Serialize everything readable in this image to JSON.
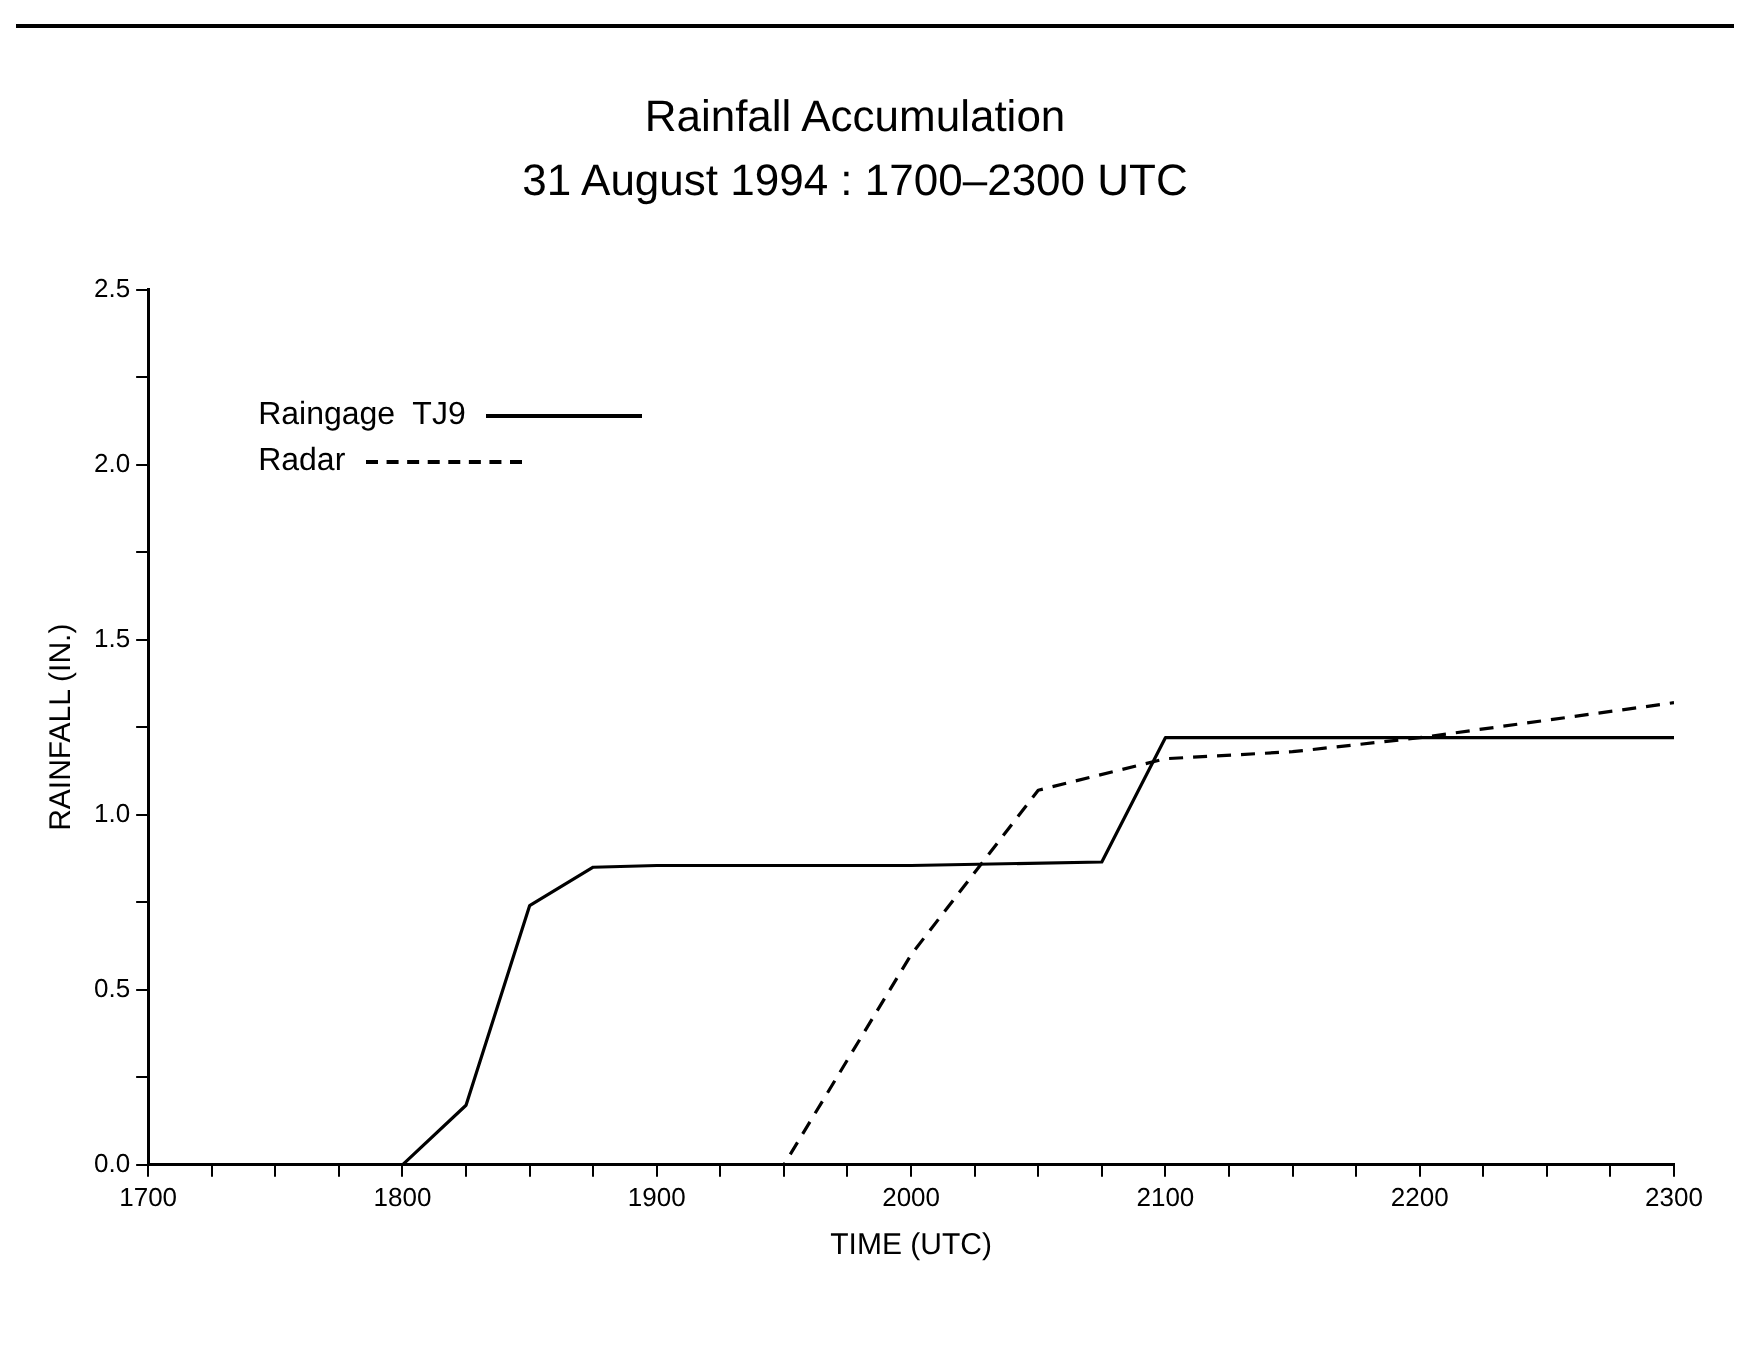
{
  "chart_data": {
    "type": "line",
    "title": "Rainfall Accumulation",
    "subtitle": "31 August 1994 : 1700–2300 UTC",
    "xlabel": "TIME (UTC)",
    "ylabel": "RAINFALL (IN.)",
    "x": [
      1700,
      1800,
      1825,
      1850,
      1875,
      1900,
      2000,
      2075,
      2100,
      2200,
      2300
    ],
    "series": [
      {
        "name": "Raingage  TJ9",
        "color": "#000000",
        "line_style": "solid",
        "values": [
          0,
          0,
          0.17,
          0.74,
          0.85,
          0.855,
          0.855,
          0.865,
          1.22,
          1.22,
          1.22
        ]
      },
      {
        "name": "Radar",
        "color": "#000000",
        "line_style": "dashed",
        "x": [
          1700,
          1950,
          2000,
          2050,
          2100,
          2150,
          2200,
          2300
        ],
        "values": [
          0,
          0,
          0.6,
          1.07,
          1.16,
          1.18,
          1.22,
          1.32
        ]
      }
    ],
    "xlim": [
      1700,
      2300
    ],
    "xticks": [
      1700,
      {
        "value": 1725,
        "label": null
      },
      {
        "value": 1750,
        "label": null
      },
      {
        "value": 1775,
        "label": null
      },
      1800,
      {
        "value": 1825,
        "label": null
      },
      {
        "value": 1850,
        "label": null
      },
      {
        "value": 1875,
        "label": null
      },
      1900,
      {
        "value": 1925,
        "label": null
      },
      {
        "value": 1950,
        "label": null
      },
      {
        "value": 1975,
        "label": null
      },
      2000,
      {
        "value": 2025,
        "label": null
      },
      {
        "value": 2050,
        "label": null
      },
      {
        "value": 2075,
        "label": null
      },
      2100,
      {
        "value": 2125,
        "label": null
      },
      {
        "value": 2150,
        "label": null
      },
      {
        "value": 2175,
        "label": null
      },
      2200,
      {
        "value": 2225,
        "label": null
      },
      {
        "value": 2250,
        "label": null
      },
      {
        "value": 2275,
        "label": null
      },
      2300
    ],
    "ylim": [
      0,
      2.5
    ],
    "yticks": [
      {
        "value": 0,
        "label": "0.0"
      },
      {
        "value": 0.25,
        "label": null
      },
      {
        "value": 0.5,
        "label": "0.5"
      },
      {
        "value": 0.75,
        "label": null
      },
      {
        "value": 1,
        "label": "1.0"
      },
      {
        "value": 1.25,
        "label": null
      },
      {
        "value": 1.5,
        "label": "1.5"
      },
      {
        "value": 1.75,
        "label": null
      },
      {
        "value": 2,
        "label": "2.0"
      },
      {
        "value": 2.25,
        "label": null
      },
      {
        "value": 2.5,
        "label": "2.5"
      }
    ],
    "grid": false,
    "legend": "top left",
    "marker": "none"
  }
}
